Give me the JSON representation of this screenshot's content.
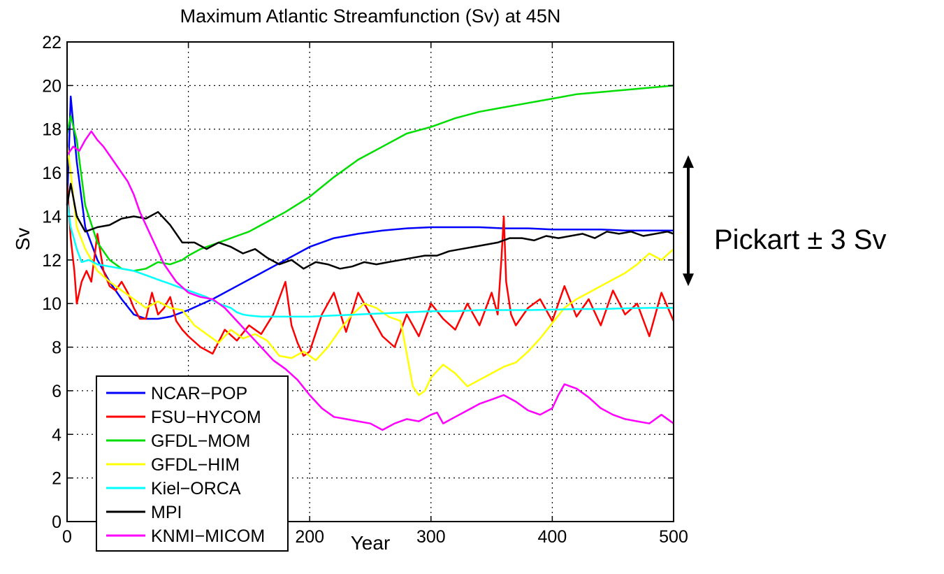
{
  "chart_data": {
    "type": "line",
    "title": "Maximum Atlantic Streamfunction (Sv) at 45N",
    "xlabel": "Year",
    "ylabel": "Sv",
    "xlim": [
      0,
      500
    ],
    "ylim": [
      0,
      22
    ],
    "xticks": [
      "0",
      "100",
      "200",
      "300",
      "400",
      "500"
    ],
    "yticks": [
      "0",
      "2",
      "4",
      "6",
      "8",
      "10",
      "12",
      "14",
      "16",
      "18",
      "20",
      "22"
    ],
    "grid": true,
    "legend_position": "lower-left",
    "annotation": {
      "text": "Pickart ± 3 Sv",
      "range": [
        10.8,
        16.8
      ],
      "arrow": "double-headed vertical"
    },
    "series": [
      {
        "name": "NCAR−POP",
        "color": "#0000ff",
        "x": [
          0,
          3,
          8,
          15,
          25,
          35,
          45,
          55,
          65,
          75,
          85,
          100,
          120,
          140,
          160,
          180,
          200,
          220,
          240,
          260,
          280,
          300,
          320,
          340,
          360,
          380,
          400,
          420,
          440,
          460,
          480,
          500
        ],
        "y": [
          14.5,
          19.5,
          16.5,
          13.5,
          12.0,
          11.0,
          10.2,
          9.5,
          9.3,
          9.3,
          9.4,
          9.7,
          10.2,
          10.8,
          11.4,
          12.0,
          12.6,
          13.0,
          13.2,
          13.35,
          13.45,
          13.5,
          13.5,
          13.5,
          13.45,
          13.45,
          13.4,
          13.4,
          13.4,
          13.35,
          13.35,
          13.35
        ]
      },
      {
        "name": "FSU−HYCOM",
        "color": "#ff0000",
        "x": [
          0,
          3,
          6,
          8,
          12,
          16,
          20,
          25,
          30,
          35,
          40,
          45,
          50,
          55,
          60,
          65,
          70,
          75,
          80,
          85,
          90,
          95,
          100,
          110,
          120,
          130,
          140,
          150,
          160,
          170,
          180,
          185,
          190,
          195,
          200,
          210,
          220,
          230,
          240,
          250,
          260,
          270,
          280,
          290,
          300,
          310,
          320,
          330,
          340,
          350,
          355,
          358,
          360,
          362,
          366,
          370,
          380,
          390,
          400,
          410,
          420,
          430,
          440,
          450,
          460,
          470,
          480,
          490,
          500
        ],
        "y": [
          15.5,
          13.0,
          11.5,
          10.0,
          11.0,
          11.5,
          11.0,
          13.2,
          11.5,
          10.8,
          10.6,
          11.0,
          10.5,
          9.8,
          9.3,
          9.3,
          10.5,
          9.5,
          9.8,
          10.3,
          9.2,
          8.8,
          8.5,
          8.0,
          7.7,
          8.8,
          8.3,
          9.0,
          8.6,
          9.5,
          11.0,
          9.0,
          8.2,
          7.6,
          7.8,
          9.5,
          10.5,
          8.7,
          10.5,
          9.5,
          8.5,
          8.0,
          9.5,
          8.5,
          10.0,
          9.3,
          8.8,
          10.0,
          9.0,
          10.5,
          9.5,
          12.0,
          14.0,
          11.0,
          9.5,
          9.0,
          9.8,
          10.2,
          9.2,
          10.8,
          9.4,
          10.2,
          9.0,
          10.6,
          9.5,
          10.0,
          8.5,
          10.5,
          9.2
        ]
      },
      {
        "name": "GFDL−MOM",
        "color": "#00dd00",
        "x": [
          0,
          3,
          8,
          15,
          25,
          35,
          45,
          55,
          65,
          75,
          85,
          95,
          100,
          110,
          120,
          130,
          140,
          150,
          160,
          170,
          180,
          200,
          220,
          240,
          260,
          280,
          300,
          320,
          340,
          360,
          380,
          400,
          420,
          440,
          460,
          480,
          500
        ],
        "y": [
          17.8,
          18.6,
          17.5,
          14.5,
          12.8,
          12.0,
          11.6,
          11.5,
          11.6,
          11.9,
          11.8,
          12.0,
          12.2,
          12.5,
          12.7,
          12.9,
          13.1,
          13.3,
          13.6,
          13.9,
          14.2,
          14.9,
          15.8,
          16.6,
          17.2,
          17.8,
          18.1,
          18.5,
          18.8,
          19.0,
          19.2,
          19.4,
          19.6,
          19.7,
          19.8,
          19.9,
          20.0
        ]
      },
      {
        "name": "GFDL−HIM",
        "color": "#ffff00",
        "x": [
          0,
          3,
          8,
          15,
          25,
          35,
          45,
          55,
          65,
          75,
          85,
          95,
          105,
          115,
          125,
          135,
          145,
          155,
          165,
          175,
          185,
          195,
          205,
          215,
          225,
          235,
          245,
          255,
          265,
          275,
          285,
          290,
          295,
          300,
          310,
          320,
          330,
          340,
          350,
          360,
          370,
          380,
          390,
          400,
          410,
          420,
          430,
          440,
          450,
          460,
          470,
          480,
          490,
          500
        ],
        "y": [
          17.3,
          16.0,
          13.5,
          12.5,
          11.5,
          11.0,
          10.6,
          10.2,
          9.8,
          10.1,
          9.8,
          9.7,
          9.0,
          8.6,
          8.2,
          8.8,
          8.4,
          8.6,
          8.3,
          7.6,
          7.5,
          7.8,
          7.4,
          8.0,
          8.8,
          9.5,
          10.0,
          9.8,
          9.4,
          9.2,
          6.2,
          5.8,
          6.0,
          6.6,
          7.2,
          6.8,
          6.2,
          6.5,
          6.8,
          7.1,
          7.3,
          7.8,
          8.4,
          9.1,
          9.8,
          10.2,
          10.5,
          10.8,
          11.1,
          11.4,
          11.8,
          12.3,
          12.0,
          12.5
        ]
      },
      {
        "name": "Kiel−ORCA",
        "color": "#00ffff",
        "x": [
          0,
          3,
          8,
          12,
          18,
          25,
          35,
          45,
          55,
          65,
          75,
          85,
          95,
          105,
          115,
          125,
          135,
          140,
          145,
          150,
          160,
          180,
          200,
          220,
          240,
          260,
          280,
          300,
          320,
          340,
          360,
          380,
          400,
          420,
          440,
          460,
          480,
          500
        ],
        "y": [
          14.8,
          13.5,
          12.5,
          11.9,
          12.0,
          11.8,
          11.7,
          11.6,
          11.5,
          11.3,
          11.1,
          10.9,
          10.7,
          10.5,
          10.3,
          10.0,
          9.8,
          9.6,
          9.5,
          9.45,
          9.4,
          9.4,
          9.4,
          9.45,
          9.5,
          9.55,
          9.6,
          9.65,
          9.65,
          9.7,
          9.7,
          9.7,
          9.72,
          9.75,
          9.75,
          9.78,
          9.8,
          9.8
        ]
      },
      {
        "name": "MPI",
        "color": "#000000",
        "x": [
          0,
          3,
          8,
          15,
          25,
          35,
          45,
          55,
          65,
          75,
          85,
          95,
          105,
          115,
          125,
          135,
          145,
          155,
          165,
          175,
          185,
          195,
          205,
          215,
          225,
          235,
          245,
          255,
          265,
          275,
          285,
          295,
          305,
          315,
          325,
          335,
          345,
          355,
          365,
          375,
          385,
          395,
          405,
          415,
          425,
          435,
          445,
          455,
          465,
          475,
          485,
          495,
          500
        ],
        "y": [
          14.5,
          15.5,
          14.0,
          13.3,
          13.5,
          13.6,
          13.9,
          14.0,
          13.9,
          14.2,
          13.6,
          12.8,
          12.8,
          12.5,
          12.8,
          12.6,
          12.3,
          12.5,
          12.1,
          11.8,
          12.0,
          11.6,
          11.9,
          11.8,
          11.6,
          11.7,
          11.9,
          11.8,
          11.9,
          12.0,
          12.1,
          12.2,
          12.2,
          12.4,
          12.5,
          12.6,
          12.7,
          12.8,
          13.0,
          13.0,
          12.9,
          13.1,
          13.0,
          13.1,
          13.2,
          13.0,
          13.3,
          13.2,
          13.3,
          13.1,
          13.2,
          13.3,
          13.2
        ]
      },
      {
        "name": "KNMI−MICOM",
        "color": "#ff00ff",
        "x": [
          0,
          5,
          10,
          15,
          20,
          25,
          30,
          35,
          40,
          45,
          50,
          55,
          60,
          70,
          80,
          90,
          100,
          110,
          120,
          130,
          140,
          150,
          160,
          170,
          180,
          190,
          200,
          210,
          220,
          230,
          240,
          250,
          260,
          270,
          280,
          290,
          300,
          305,
          310,
          320,
          330,
          340,
          350,
          360,
          370,
          380,
          390,
          400,
          405,
          410,
          420,
          430,
          440,
          450,
          460,
          470,
          480,
          485,
          490,
          500
        ],
        "y": [
          16.8,
          17.2,
          17.0,
          17.5,
          17.9,
          17.5,
          17.2,
          16.8,
          16.4,
          16.0,
          15.6,
          15.0,
          14.2,
          13.0,
          11.8,
          11.0,
          10.5,
          10.3,
          10.2,
          9.8,
          9.2,
          8.6,
          8.0,
          7.4,
          7.0,
          6.5,
          5.8,
          5.2,
          4.8,
          4.7,
          4.6,
          4.5,
          4.2,
          4.5,
          4.7,
          4.6,
          4.9,
          5.0,
          4.5,
          4.8,
          5.1,
          5.4,
          5.6,
          5.8,
          5.5,
          5.1,
          4.9,
          5.2,
          5.8,
          6.3,
          6.1,
          5.7,
          5.2,
          4.9,
          4.7,
          4.6,
          4.5,
          4.7,
          4.9,
          4.5
        ]
      }
    ]
  }
}
